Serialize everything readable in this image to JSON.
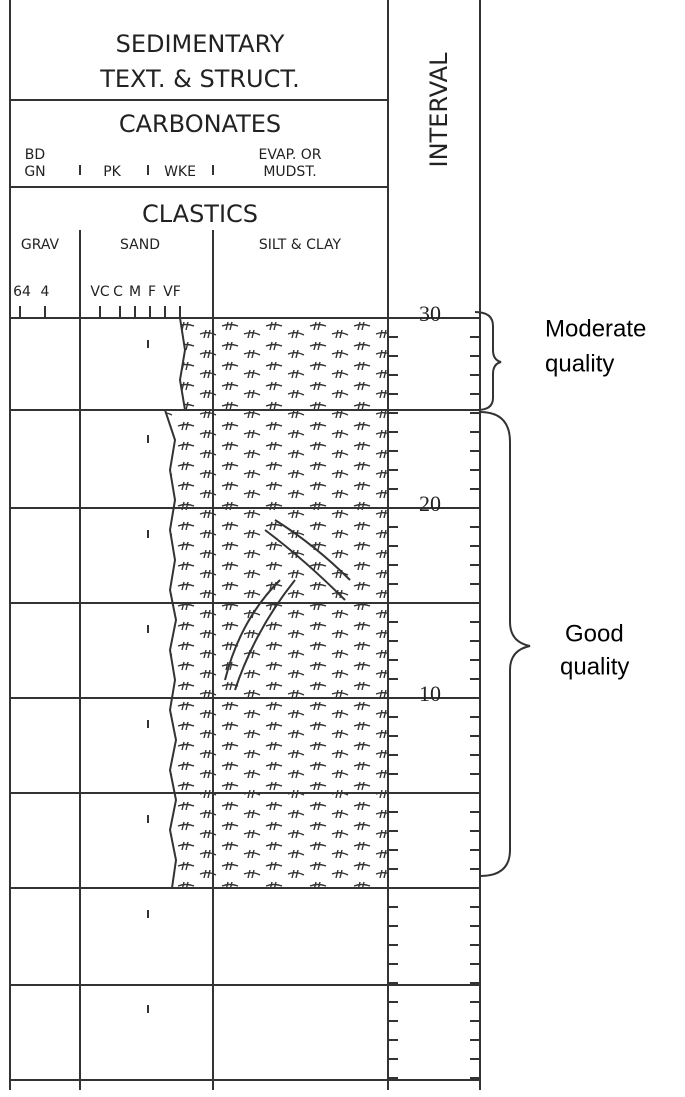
{
  "header": {
    "title_lines": [
      "SEDIMENTARY",
      "TEXT. & STRUCT."
    ],
    "carbonates": {
      "title": "CARBONATES",
      "columns": [
        [
          "BD",
          "GN"
        ],
        [
          "PK"
        ],
        [
          "WKE"
        ],
        [
          "EVAP. OR",
          "MUDST."
        ]
      ]
    },
    "clastics": {
      "title": "CLASTICS",
      "columns": [
        "GRAV",
        "SAND",
        "SILT & CLAY"
      ],
      "grain_sizes": [
        "64",
        "4",
        "VC",
        "C",
        "M",
        "F",
        "VF"
      ]
    },
    "interval": "INTERVAL"
  },
  "interval_labels": [
    "30",
    "20",
    "10"
  ],
  "annotations": [
    [
      "Moderate",
      "quality"
    ],
    [
      "Good",
      "quality"
    ]
  ]
}
